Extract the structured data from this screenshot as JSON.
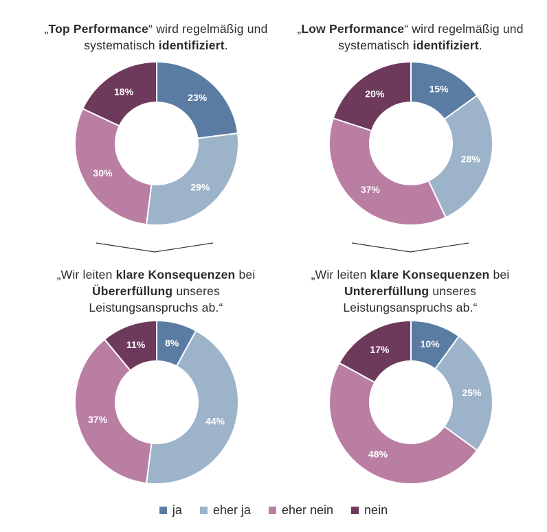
{
  "legend": [
    {
      "label": "ja",
      "color": "#5a7ca3"
    },
    {
      "label": "eher ja",
      "color": "#9db3ca"
    },
    {
      "label": "eher nein",
      "color": "#ba7ea3"
    },
    {
      "label": "nein",
      "color": "#6e3a5c"
    }
  ],
  "chart_data": [
    {
      "type": "pie",
      "title_parts": [
        "„",
        "Top Performance",
        "“ wird regelmäßig und systematisch ",
        "identifiziert",
        "."
      ],
      "categories": [
        "ja",
        "eher ja",
        "eher nein",
        "nein"
      ],
      "values": [
        23,
        29,
        30,
        18
      ],
      "labels": [
        "23%",
        "29%",
        "30%",
        "18%"
      ]
    },
    {
      "type": "pie",
      "title_parts": [
        "„",
        "Low Performance",
        "“ wird regelmäßig und systematisch ",
        "identifiziert",
        "."
      ],
      "categories": [
        "ja",
        "eher ja",
        "eher nein",
        "nein"
      ],
      "values": [
        15,
        28,
        37,
        20
      ],
      "labels": [
        "15%",
        "28%",
        "37%",
        "20%"
      ]
    },
    {
      "type": "pie",
      "title_parts": [
        "„Wir leiten ",
        "klare Konsequenzen",
        " bei ",
        "Übererfüllung",
        " unseres Leistungsanspruchs ab.“"
      ],
      "categories": [
        "ja",
        "eher ja",
        "eher nein",
        "nein"
      ],
      "values": [
        8,
        44,
        37,
        11
      ],
      "labels": [
        "8%",
        "44%",
        "37%",
        "11%"
      ]
    },
    {
      "type": "pie",
      "title_parts": [
        "„Wir leiten ",
        "klare Konsequenzen",
        " bei ",
        "Untererfüllung",
        " unseres Leistungsanspruchs ab.“"
      ],
      "categories": [
        "ja",
        "eher ja",
        "eher nein",
        "nein"
      ],
      "values": [
        10,
        25,
        48,
        17
      ],
      "labels": [
        "10%",
        "25%",
        "48%",
        "17%"
      ]
    }
  ]
}
